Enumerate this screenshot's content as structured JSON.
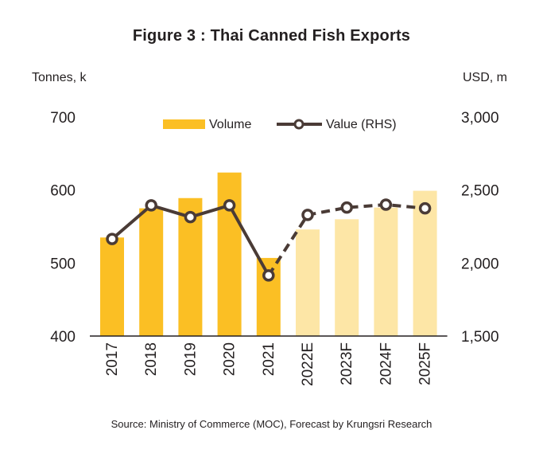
{
  "figure": {
    "title": "Figure 3 : Thai Canned Fish Exports",
    "source": "Source: Ministry of Commerce (MOC), Forecast by Krungsri Research"
  },
  "chart_data": {
    "type": "bar",
    "title": "Figure 3 : Thai Canned Fish Exports",
    "categories": [
      "2017",
      "2018",
      "2019",
      "2020",
      "2021",
      "2022E",
      "2023F",
      "2024F",
      "2025F"
    ],
    "forecast_categories": [
      "2022E",
      "2023F",
      "2024F",
      "2025F"
    ],
    "y_left": {
      "label": "Tonnes, k",
      "ylim": [
        400,
        700
      ],
      "ticks": [
        "400",
        "500",
        "600",
        "700"
      ]
    },
    "y_right": {
      "label": "USD, m",
      "ylim": [
        1500,
        3000
      ],
      "ticks": [
        "1,500",
        "2,000",
        "2,500",
        "3,000"
      ]
    },
    "series": [
      {
        "name": "Volume",
        "type": "bar",
        "axis": "left",
        "values": [
          535,
          575,
          589,
          624,
          507,
          546,
          560,
          576,
          599
        ],
        "color": "#fbbf24",
        "forecast_color": "#fde6a6"
      },
      {
        "name": "Value (RHS)",
        "type": "line",
        "axis": "right",
        "values": [
          2165,
          2395,
          2315,
          2395,
          1915,
          2330,
          2380,
          2400,
          2375
        ],
        "color": "#4a3b36"
      }
    ],
    "legend_position": "top-center",
    "grid": false
  }
}
